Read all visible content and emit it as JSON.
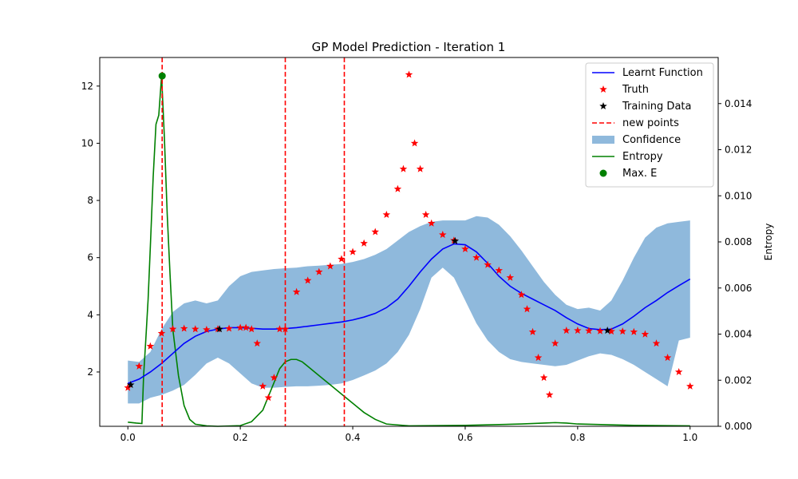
{
  "chart_data": {
    "type": "line",
    "title": "GP Model Prediction - Iteration 1",
    "xlabel": "",
    "ylabel": "",
    "y2label": "Entropy",
    "xlim": [
      -0.05,
      1.05
    ],
    "ylim": [
      0.1,
      13.0
    ],
    "y2lim": [
      0.0,
      0.016
    ],
    "xticks": [
      0.0,
      0.2,
      0.4,
      0.6,
      0.8,
      1.0
    ],
    "xtick_labels": [
      "0.0",
      "0.2",
      "0.4",
      "0.6",
      "0.8",
      "1.0"
    ],
    "yticks": [
      2,
      4,
      6,
      8,
      10,
      12
    ],
    "ytick_labels": [
      "2",
      "4",
      "6",
      "8",
      "10",
      "12"
    ],
    "y2ticks": [
      0.0,
      0.002,
      0.004,
      0.006,
      0.008,
      0.01,
      0.012,
      0.014
    ],
    "y2tick_labels": [
      "0.000",
      "0.002",
      "0.004",
      "0.006",
      "0.008",
      "0.010",
      "0.012",
      "0.014"
    ],
    "grid": false,
    "legend_position": "top-right",
    "legend": [
      {
        "label": "Learnt Function",
        "kind": "line",
        "color": "#0000ff"
      },
      {
        "label": "Truth",
        "kind": "star",
        "color": "#ff0000"
      },
      {
        "label": "Training Data",
        "kind": "star",
        "color": "#000000"
      },
      {
        "label": "new points",
        "kind": "dash",
        "color": "#ff0000"
      },
      {
        "label": "Confidence",
        "kind": "patch",
        "color": "#8fb9dc"
      },
      {
        "label": "Entropy",
        "kind": "line",
        "color": "#008000"
      },
      {
        "label": "Max. E",
        "kind": "dot",
        "color": "#008000"
      }
    ],
    "series": [
      {
        "name": "Learnt Function",
        "color": "#0000ff",
        "x": [
          0.0,
          0.02,
          0.04,
          0.06,
          0.08,
          0.1,
          0.12,
          0.14,
          0.16,
          0.18,
          0.2,
          0.22,
          0.24,
          0.26,
          0.28,
          0.3,
          0.32,
          0.34,
          0.36,
          0.38,
          0.4,
          0.42,
          0.44,
          0.46,
          0.48,
          0.5,
          0.52,
          0.54,
          0.56,
          0.58,
          0.6,
          0.62,
          0.64,
          0.66,
          0.68,
          0.7,
          0.72,
          0.74,
          0.76,
          0.78,
          0.8,
          0.82,
          0.84,
          0.86,
          0.88,
          0.9,
          0.92,
          0.94,
          0.96,
          0.98,
          1.0
        ],
        "y": [
          1.6,
          1.75,
          2.0,
          2.3,
          2.65,
          3.0,
          3.25,
          3.42,
          3.5,
          3.55,
          3.55,
          3.53,
          3.5,
          3.5,
          3.52,
          3.55,
          3.6,
          3.65,
          3.7,
          3.75,
          3.82,
          3.92,
          4.05,
          4.25,
          4.55,
          5.0,
          5.5,
          5.95,
          6.3,
          6.48,
          6.45,
          6.2,
          5.8,
          5.35,
          5.0,
          4.75,
          4.55,
          4.35,
          4.15,
          3.9,
          3.68,
          3.52,
          3.48,
          3.5,
          3.68,
          3.95,
          4.25,
          4.5,
          4.78,
          5.02,
          5.25
        ]
      },
      {
        "name": "Confidence",
        "color": "#8fb9dc",
        "x": [
          0.0,
          0.02,
          0.04,
          0.06,
          0.08,
          0.1,
          0.12,
          0.14,
          0.16,
          0.18,
          0.2,
          0.22,
          0.24,
          0.26,
          0.28,
          0.3,
          0.32,
          0.34,
          0.36,
          0.38,
          0.4,
          0.42,
          0.44,
          0.46,
          0.48,
          0.5,
          0.52,
          0.54,
          0.56,
          0.58,
          0.6,
          0.62,
          0.64,
          0.66,
          0.68,
          0.7,
          0.72,
          0.74,
          0.76,
          0.78,
          0.8,
          0.82,
          0.84,
          0.86,
          0.88,
          0.9,
          0.92,
          0.94,
          0.96,
          0.98,
          1.0
        ],
        "upper": [
          2.4,
          2.35,
          2.7,
          3.5,
          4.1,
          4.4,
          4.5,
          4.4,
          4.5,
          5.0,
          5.35,
          5.5,
          5.55,
          5.6,
          5.63,
          5.65,
          5.7,
          5.72,
          5.75,
          5.78,
          5.85,
          5.95,
          6.1,
          6.3,
          6.6,
          6.9,
          7.1,
          7.25,
          7.3,
          7.3,
          7.3,
          7.45,
          7.4,
          7.15,
          6.75,
          6.25,
          5.7,
          5.15,
          4.7,
          4.35,
          4.2,
          4.25,
          4.15,
          4.5,
          5.2,
          6.0,
          6.7,
          7.05,
          7.2,
          7.25,
          7.3
        ],
        "lower": [
          0.9,
          0.9,
          1.1,
          1.2,
          1.35,
          1.55,
          1.9,
          2.3,
          2.5,
          2.3,
          1.95,
          1.6,
          1.45,
          1.45,
          1.48,
          1.5,
          1.5,
          1.52,
          1.55,
          1.6,
          1.72,
          1.88,
          2.05,
          2.3,
          2.7,
          3.3,
          4.2,
          5.3,
          5.65,
          5.3,
          4.5,
          3.7,
          3.1,
          2.7,
          2.45,
          2.35,
          2.3,
          2.25,
          2.2,
          2.25,
          2.4,
          2.55,
          2.65,
          2.6,
          2.45,
          2.25,
          2.0,
          1.75,
          1.5,
          3.1,
          3.2
        ]
      },
      {
        "name": "Entropy",
        "axis": "right",
        "color": "#008000",
        "x": [
          0.0,
          0.015,
          0.025,
          0.028,
          0.032,
          0.036,
          0.04,
          0.045,
          0.05,
          0.055,
          0.06,
          0.065,
          0.07,
          0.075,
          0.08,
          0.09,
          0.1,
          0.11,
          0.12,
          0.14,
          0.16,
          0.2,
          0.22,
          0.24,
          0.25,
          0.26,
          0.27,
          0.28,
          0.29,
          0.3,
          0.31,
          0.32,
          0.34,
          0.36,
          0.38,
          0.4,
          0.42,
          0.44,
          0.46,
          0.5,
          0.6,
          0.7,
          0.74,
          0.76,
          0.78,
          0.8,
          0.9,
          1.0
        ],
        "y": [
          0.00018,
          0.00014,
          0.00012,
          0.0022,
          0.0038,
          0.0055,
          0.0078,
          0.0108,
          0.0131,
          0.0135,
          0.0152,
          0.0125,
          0.0092,
          0.0066,
          0.0042,
          0.0022,
          0.0009,
          0.0003,
          9e-05,
          2e-05,
          0.0,
          3e-05,
          0.0002,
          0.0007,
          0.0013,
          0.0019,
          0.0025,
          0.0028,
          0.0029,
          0.0029,
          0.0028,
          0.0026,
          0.0022,
          0.0018,
          0.0014,
          0.001,
          0.0006,
          0.0003,
          0.0001,
          2e-05,
          4e-05,
          0.0001,
          0.00014,
          0.00016,
          0.00014,
          0.0001,
          4e-05,
          2e-05
        ]
      },
      {
        "name": "Truth",
        "color": "#ff0000",
        "x": [
          0.0,
          0.02,
          0.04,
          0.06,
          0.08,
          0.1,
          0.12,
          0.14,
          0.16,
          0.18,
          0.2,
          0.21,
          0.22,
          0.23,
          0.24,
          0.25,
          0.26,
          0.27,
          0.28,
          0.3,
          0.32,
          0.34,
          0.36,
          0.38,
          0.4,
          0.42,
          0.44,
          0.46,
          0.48,
          0.49,
          0.5,
          0.51,
          0.52,
          0.53,
          0.54,
          0.56,
          0.58,
          0.6,
          0.62,
          0.64,
          0.66,
          0.68,
          0.7,
          0.71,
          0.72,
          0.73,
          0.74,
          0.75,
          0.76,
          0.78,
          0.8,
          0.82,
          0.84,
          0.86,
          0.88,
          0.9,
          0.92,
          0.94,
          0.96,
          0.98,
          1.0
        ],
        "y": [
          1.45,
          2.2,
          2.9,
          3.35,
          3.5,
          3.52,
          3.5,
          3.48,
          3.5,
          3.52,
          3.55,
          3.55,
          3.5,
          3.0,
          1.5,
          1.1,
          1.8,
          3.5,
          3.5,
          4.8,
          5.2,
          5.5,
          5.7,
          5.95,
          6.2,
          6.5,
          6.9,
          7.5,
          8.4,
          9.1,
          12.4,
          10.0,
          9.1,
          7.5,
          7.2,
          6.8,
          6.6,
          6.3,
          6.0,
          5.75,
          5.55,
          5.3,
          4.7,
          4.2,
          3.4,
          2.5,
          1.8,
          1.2,
          3.0,
          3.45,
          3.45,
          3.44,
          3.43,
          3.42,
          3.42,
          3.4,
          3.32,
          3.0,
          2.5,
          2.0,
          1.5
        ]
      },
      {
        "name": "Training Data",
        "color": "#000000",
        "x": [
          0.005,
          0.163,
          0.582,
          0.853
        ],
        "y": [
          1.55,
          3.5,
          6.58,
          3.45
        ]
      }
    ],
    "vlines": [
      0.061,
      0.28,
      0.385
    ],
    "max_entropy": {
      "x": 0.061,
      "y": 0.0152
    }
  }
}
